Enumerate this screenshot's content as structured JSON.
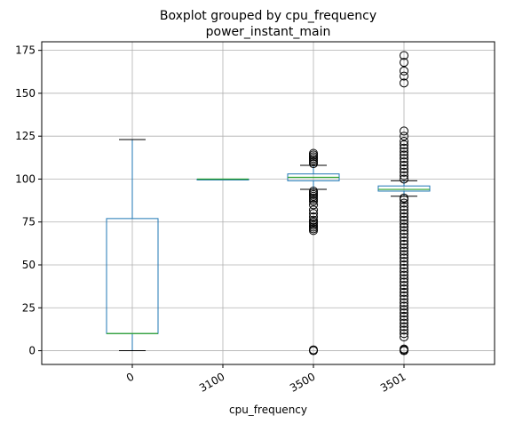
{
  "chart_data": {
    "type": "boxplot",
    "title": "Boxplot grouped by cpu_frequency",
    "subtitle": "power_instant_main",
    "xlabel": "cpu_frequency",
    "ylabel": "",
    "categories": [
      "0",
      "3100",
      "3500",
      "3501"
    ],
    "ylim": [
      -8,
      180
    ],
    "yticks": [
      0,
      25,
      50,
      75,
      100,
      125,
      150,
      175
    ],
    "grid": true,
    "colors": {
      "box": "#1f77b4",
      "median": "#2ca02c",
      "whisker": "#000000",
      "flier": "#000000",
      "grid": "#b0b0b0"
    },
    "boxes": [
      {
        "category": "0",
        "whislo": 0,
        "q1": 10,
        "med": 10,
        "q3": 77,
        "whishi": 123,
        "fliers": []
      },
      {
        "category": "3100",
        "whislo": 100,
        "q1": 100,
        "med": 100,
        "q3": 100,
        "whishi": 100,
        "fliers": []
      },
      {
        "category": "3500",
        "whislo": 94,
        "q1": 99,
        "med": 101,
        "q3": 103,
        "whishi": 108,
        "fliers": [
          0,
          0.5,
          70,
          71,
          72,
          73,
          74,
          75,
          76,
          78,
          80,
          82,
          85,
          87,
          88,
          89,
          90,
          91,
          92,
          93,
          109,
          110,
          111,
          112,
          113,
          114,
          115
        ]
      },
      {
        "category": "3501",
        "whislo": 90,
        "q1": 93,
        "med": 94,
        "q3": 96,
        "whishi": 99,
        "fliers": [
          0,
          0.5,
          1,
          8,
          10,
          12,
          14,
          16,
          18,
          20,
          22,
          24,
          26,
          28,
          30,
          32,
          34,
          36,
          38,
          40,
          42,
          44,
          46,
          48,
          50,
          52,
          54,
          56,
          58,
          60,
          62,
          64,
          66,
          68,
          70,
          72,
          74,
          76,
          78,
          80,
          82,
          84,
          86,
          88,
          89,
          100,
          102,
          104,
          106,
          108,
          110,
          112,
          114,
          116,
          118,
          120,
          122,
          125,
          128,
          156,
          160,
          163,
          168,
          172
        ]
      }
    ]
  }
}
